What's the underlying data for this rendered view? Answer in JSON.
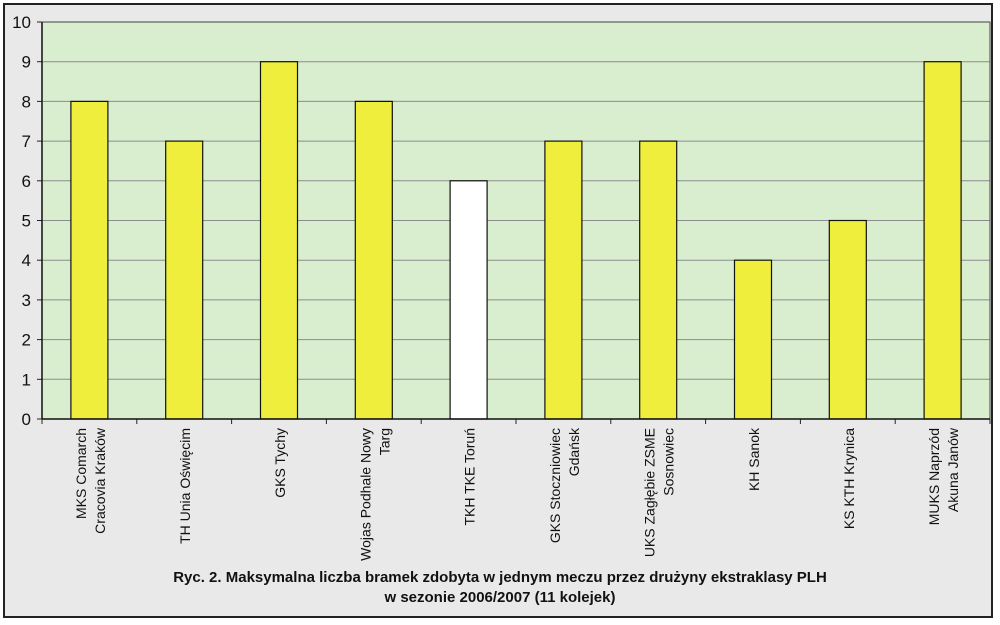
{
  "chart_data": {
    "type": "bar",
    "categories": [
      [
        "MKS Comarch",
        "Cracovia Kraków"
      ],
      [
        "TH Unia Oświęcim"
      ],
      [
        "GKS Tychy"
      ],
      [
        "Wojas Podhale Nowy",
        "Targ"
      ],
      [
        "TKH TKE Toruń"
      ],
      [
        "GKS Stoczniowiec",
        "Gdańsk"
      ],
      [
        "UKS Zagłębie ZSME",
        "Sosnowiec"
      ],
      [
        "KH Sanok"
      ],
      [
        "KS KTH Krynica"
      ],
      [
        "MUKS Naprzód",
        "Akuna Janów"
      ]
    ],
    "values": [
      8,
      7,
      9,
      8,
      6,
      7,
      7,
      4,
      5,
      9
    ],
    "bar_colors": [
      "#f0ee3c",
      "#f0ee3c",
      "#f0ee3c",
      "#f0ee3c",
      "#ffffff",
      "#f0ee3c",
      "#f0ee3c",
      "#f0ee3c",
      "#f0ee3c",
      "#f0ee3c"
    ],
    "yticks": [
      "0",
      "1",
      "2",
      "3",
      "4",
      "5",
      "6",
      "7",
      "8",
      "9",
      "10"
    ],
    "ylim": [
      0,
      10
    ],
    "grid": true,
    "plot_background": "#d9edcf",
    "title": "",
    "xlabel": "",
    "ylabel": ""
  },
  "caption": {
    "line1": "Ryc. 2. Maksymalna liczba bramek zdobyta w jednym meczu przez drużyny ekstraklasy PLH",
    "line2": "w sezonie 2006/2007 (11 kolejek)"
  }
}
